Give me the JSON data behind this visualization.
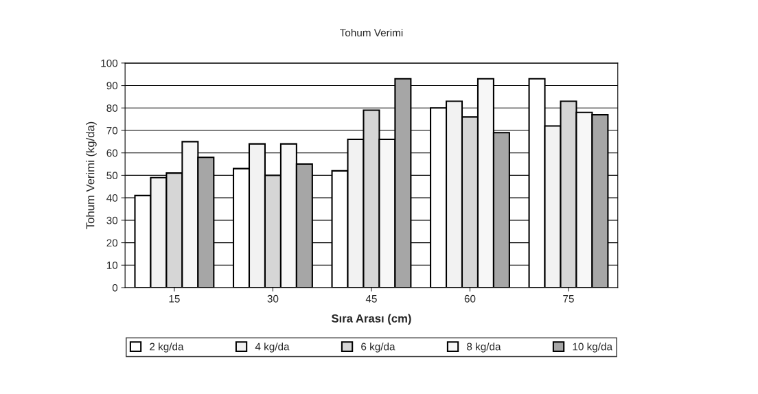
{
  "chart_data": {
    "type": "bar",
    "title": "Tohum Verimi",
    "xlabel": "Sıra Arası (cm)",
    "ylabel": "Tohum Verimi (kg/da)",
    "categories": [
      "15",
      "30",
      "45",
      "60",
      "75"
    ],
    "series": [
      {
        "name": "2 kg/da",
        "color": "#ffffff",
        "values": [
          41,
          53,
          52,
          80,
          93
        ]
      },
      {
        "name": "4 kg/da",
        "color": "#f2f2f2",
        "values": [
          49,
          64,
          66,
          83,
          72
        ]
      },
      {
        "name": "6 kg/da",
        "color": "#d6d6d6",
        "values": [
          51,
          50,
          79,
          76,
          83
        ]
      },
      {
        "name": "8 kg/da",
        "color": "#f7f7f7",
        "values": [
          65,
          64,
          66,
          93,
          78
        ]
      },
      {
        "name": "10 kg/da",
        "color": "#a6a6a6",
        "values": [
          58,
          55,
          93,
          69,
          77
        ]
      }
    ],
    "ylim": [
      0,
      100
    ],
    "yticks": [
      0,
      10,
      20,
      30,
      40,
      50,
      60,
      70,
      80,
      90,
      100
    ],
    "grid": "y",
    "legend": "bottom"
  }
}
